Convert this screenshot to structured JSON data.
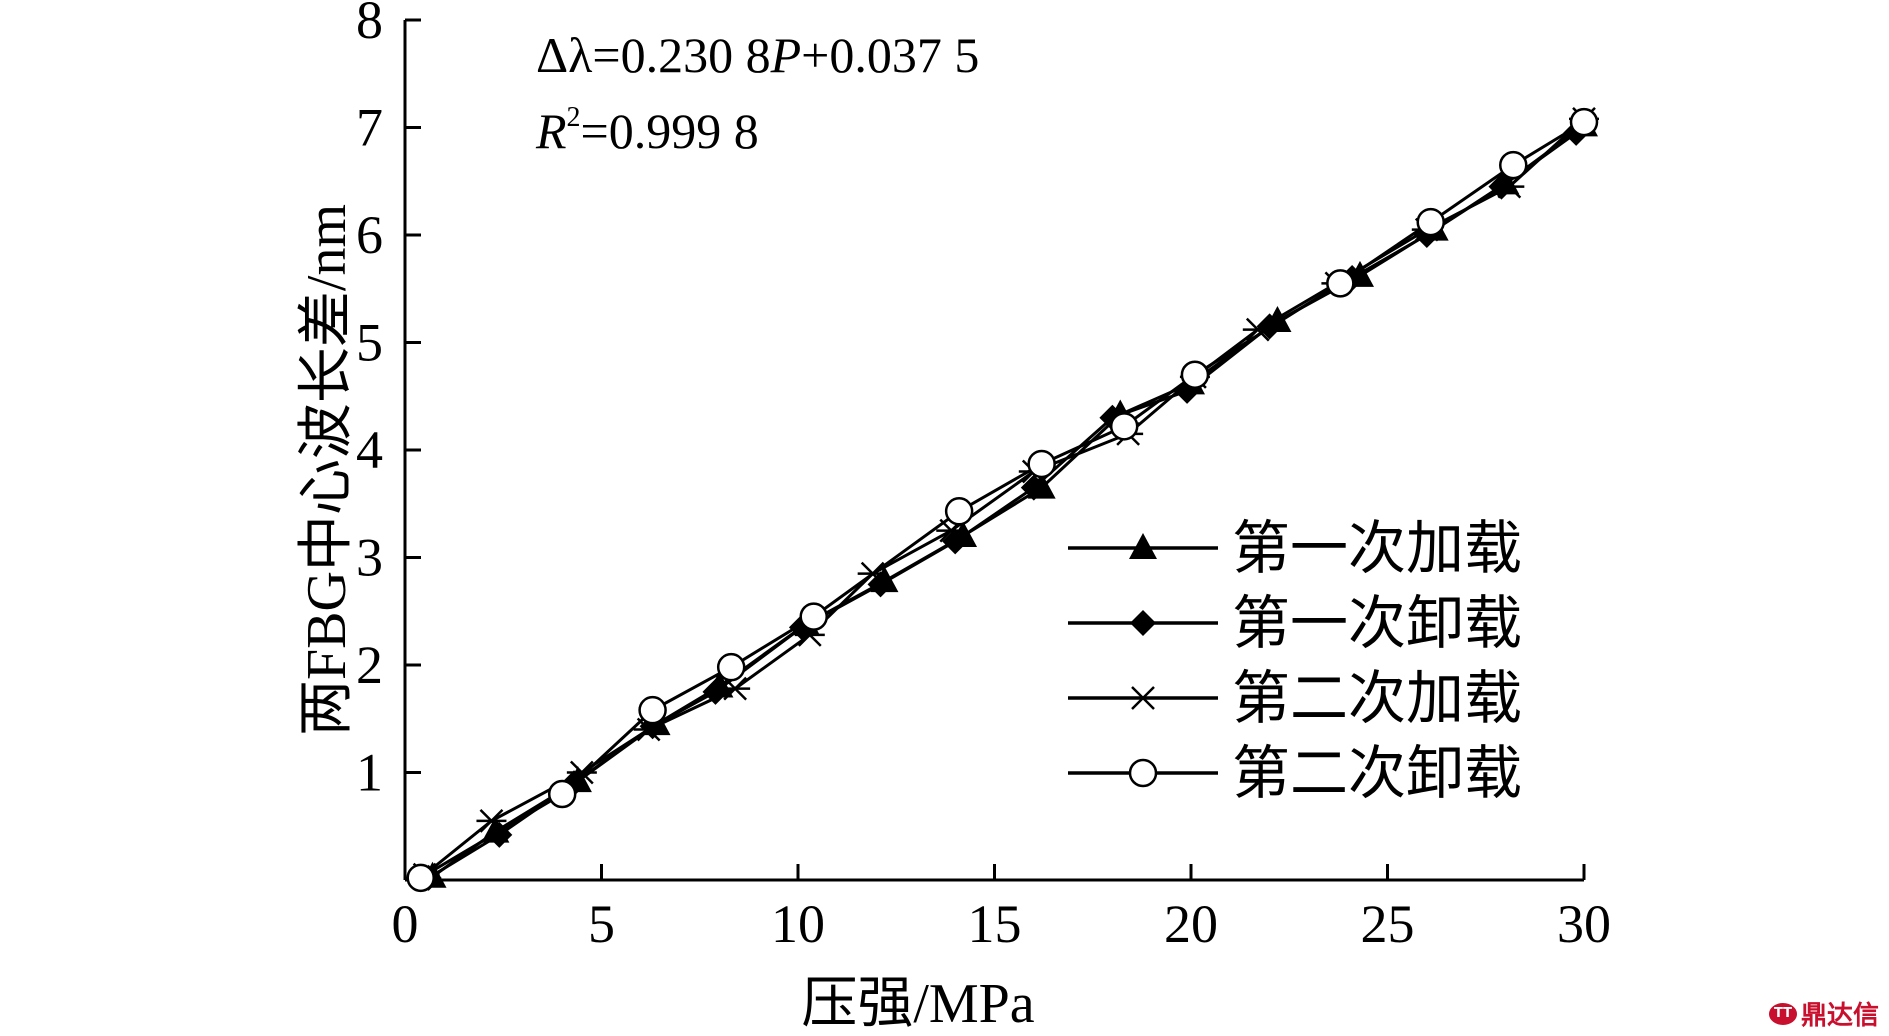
{
  "chart_data": {
    "type": "line",
    "xlabel": "压强/MPa",
    "ylabel": "两FBG中心波长差/nm",
    "xlim": [
      0,
      30
    ],
    "ylim": [
      0,
      8
    ],
    "xticks": [
      0,
      5,
      10,
      15,
      20,
      25,
      30
    ],
    "yticks": [
      1,
      2,
      3,
      4,
      5,
      6,
      7,
      8
    ],
    "annotations": {
      "equation_prefix": "Δλ=0.230 8",
      "equation_var": "P",
      "equation_suffix": "+0.037 5",
      "r2_var": "R",
      "r2_exp": "2",
      "r2_value": "=0.999 8"
    },
    "legend_position": "bottom-right",
    "series": [
      {
        "name": "第一次加载",
        "marker": "triangle",
        "x": [
          0.7,
          2.3,
          4.4,
          6.4,
          8.0,
          10.2,
          12.2,
          14.2,
          16.2,
          18.2,
          20.0,
          22.2,
          24.3,
          26.2,
          28.0,
          30.0
        ],
        "y": [
          0.03,
          0.45,
          0.92,
          1.45,
          1.8,
          2.38,
          2.78,
          3.2,
          3.65,
          4.33,
          4.62,
          5.2,
          5.62,
          6.05,
          6.48,
          7.02
        ]
      },
      {
        "name": "第一次卸载",
        "marker": "diamond",
        "x": [
          0.6,
          2.4,
          4.3,
          6.3,
          7.9,
          10.1,
          12.1,
          14.0,
          16.0,
          18.0,
          19.9,
          22.0,
          24.1,
          26.0,
          27.9,
          29.8
        ],
        "y": [
          0.02,
          0.42,
          0.9,
          1.43,
          1.75,
          2.35,
          2.75,
          3.15,
          3.65,
          4.3,
          4.55,
          5.15,
          5.6,
          6.0,
          6.45,
          6.95
        ]
      },
      {
        "name": "第二次加载",
        "marker": "star",
        "x": [
          0.5,
          2.2,
          4.5,
          6.2,
          8.4,
          10.3,
          11.9,
          13.9,
          16.0,
          18.4,
          20.1,
          21.7,
          23.7,
          26.0,
          28.1,
          30.0
        ],
        "y": [
          0.05,
          0.55,
          1.0,
          1.4,
          1.78,
          2.28,
          2.85,
          3.25,
          3.8,
          4.15,
          4.68,
          5.12,
          5.55,
          6.05,
          6.45,
          7.08
        ]
      },
      {
        "name": "第二次卸载",
        "marker": "circle",
        "x": [
          0.4,
          4.0,
          6.3,
          8.3,
          10.4,
          14.1,
          16.2,
          18.3,
          20.1,
          23.8,
          26.1,
          28.2,
          30.0
        ],
        "y": [
          0.02,
          0.8,
          1.58,
          1.98,
          2.45,
          3.43,
          3.87,
          4.22,
          4.7,
          5.55,
          6.12,
          6.65,
          7.05
        ]
      }
    ]
  },
  "watermark": {
    "logo": "TT",
    "text": "鼎达信"
  }
}
